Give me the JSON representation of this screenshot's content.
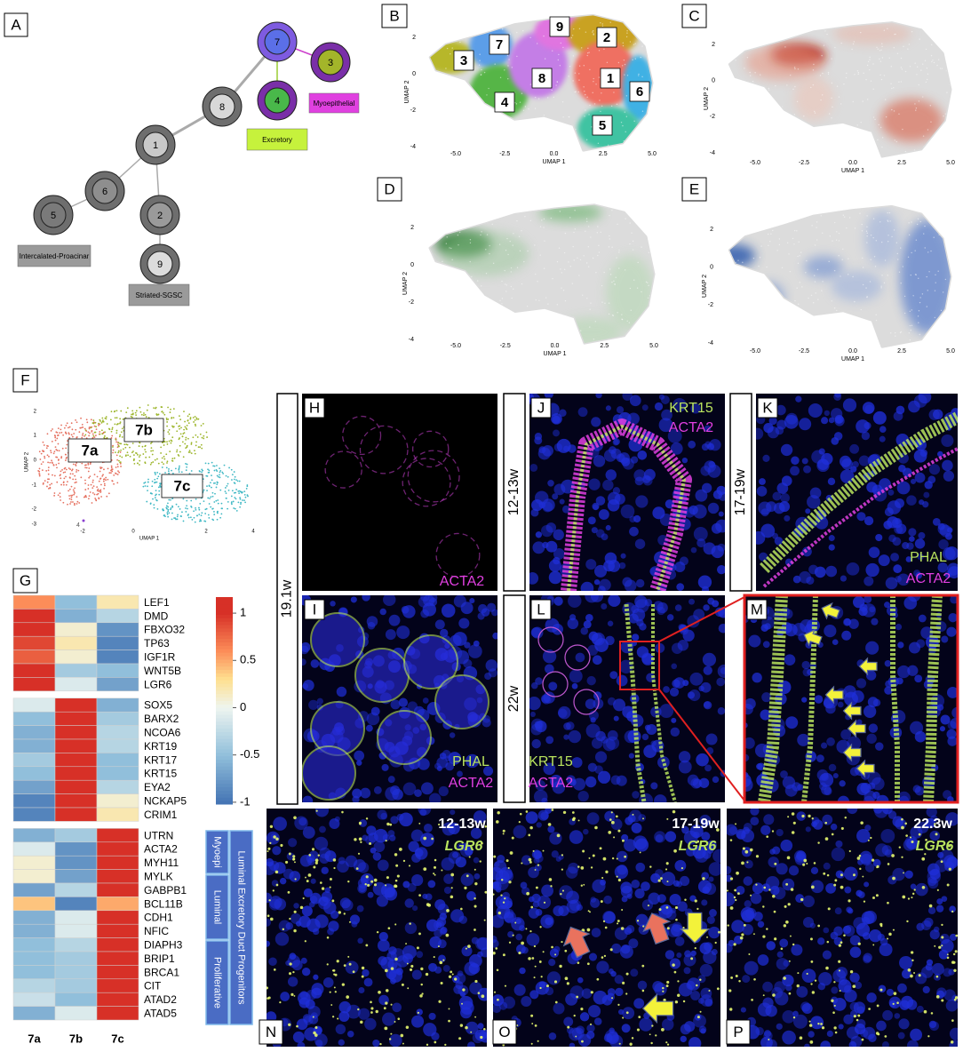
{
  "panel_labels": [
    "A",
    "B",
    "C",
    "D",
    "E",
    "F",
    "G"
  ],
  "lineage_tree": {
    "nodes": [
      "7",
      "3",
      "4",
      "8",
      "1",
      "6",
      "5",
      "2",
      "9"
    ],
    "fates": [
      "Myoepithelial",
      "Excretory",
      "Intercalated-Proacinar",
      "Striated-SGSC"
    ]
  },
  "umap": {
    "x_label": "UMAP 1",
    "y_label": "UMAP 2",
    "x_ticks": [
      "-5.0",
      "-2.5",
      "0.0",
      "2.5",
      "5.0"
    ],
    "y_ticks": [
      "2",
      "0",
      "-2",
      "-4"
    ],
    "clusters": [
      "1",
      "2",
      "3",
      "4",
      "5",
      "6",
      "7",
      "8",
      "9"
    ]
  },
  "subcluster_umap": {
    "x_label": "UMAP 1",
    "y_label": "UMAP 2",
    "x_ticks": [
      "-2",
      "0",
      "2",
      "4"
    ],
    "y_ticks": [
      "2",
      "1",
      "0",
      "-1",
      "-2",
      "-3"
    ],
    "clusters": [
      "7a",
      "7b",
      "7c"
    ],
    "outlier_cluster": "4"
  },
  "heatmap": {
    "columns": [
      "7a",
      "7b",
      "7c"
    ],
    "groups": [
      {
        "genes": [
          "LEF1",
          "DMD",
          "FBXO32",
          "TP63",
          "IGF1R",
          "WNT5B",
          "LGR6"
        ],
        "values": [
          [
            0.6,
            -0.5,
            0.2
          ],
          [
            1.0,
            -0.6,
            -0.3
          ],
          [
            1.0,
            0.1,
            -0.8
          ],
          [
            0.9,
            0.2,
            -0.9
          ],
          [
            0.8,
            0.1,
            -0.9
          ],
          [
            1.0,
            -0.4,
            -0.5
          ],
          [
            1.0,
            -0.1,
            -0.7
          ]
        ]
      },
      {
        "genes": [
          "SOX5",
          "BARX2",
          "NCOA6",
          "KRT19",
          "KRT17",
          "KRT15",
          "EYA2",
          "NCKAP5",
          "CRIM1"
        ],
        "values": [
          [
            -0.1,
            1.0,
            -0.6
          ],
          [
            -0.5,
            1.0,
            -0.4
          ],
          [
            -0.6,
            1.0,
            -0.3
          ],
          [
            -0.6,
            1.0,
            -0.3
          ],
          [
            -0.4,
            1.0,
            -0.5
          ],
          [
            -0.5,
            1.0,
            -0.5
          ],
          [
            -0.7,
            1.0,
            -0.3
          ],
          [
            -0.9,
            1.0,
            0.1
          ],
          [
            -0.9,
            1.0,
            0.2
          ]
        ]
      },
      {
        "genes": [
          "UTRN",
          "ACTA2",
          "MYH11",
          "MYLK",
          "GABPB1",
          "BCL11B",
          "CDH1",
          "NFIC",
          "DIAPH3",
          "BRIP1",
          "BRCA1",
          "CIT",
          "ATAD2",
          "ATAD5"
        ],
        "values": [
          [
            -0.6,
            -0.4,
            1.0
          ],
          [
            -0.1,
            -0.8,
            1.0
          ],
          [
            0.1,
            -0.8,
            1.0
          ],
          [
            0.1,
            -0.7,
            1.0
          ],
          [
            -0.7,
            -0.3,
            1.0
          ],
          [
            0.4,
            -0.9,
            0.5
          ],
          [
            -0.6,
            -0.1,
            1.0
          ],
          [
            -0.6,
            -0.1,
            1.0
          ],
          [
            -0.5,
            -0.3,
            1.0
          ],
          [
            -0.5,
            -0.4,
            1.0
          ],
          [
            -0.5,
            -0.4,
            1.0
          ],
          [
            -0.3,
            -0.4,
            1.0
          ],
          [
            -0.2,
            -0.5,
            1.0
          ],
          [
            -0.6,
            -0.1,
            1.0
          ]
        ]
      }
    ],
    "colorbar": {
      "lim": [
        -1.02,
        1.17
      ],
      "ticks": [
        1,
        0.5,
        0,
        -0.5,
        -1
      ]
    },
    "annotations": [
      "Myoepi",
      "Luminal",
      "Proliferative",
      "Luminal Excretory Duct Progenitors"
    ]
  },
  "micrographs": {
    "row_stages": [
      "19.1w",
      "12-13w",
      "17-19w",
      "22w"
    ],
    "panels": [
      {
        "label": "H",
        "stains": [
          "ACTA2"
        ]
      },
      {
        "label": "J",
        "stains": [
          "KRT15",
          "ACTA2"
        ]
      },
      {
        "label": "K",
        "stains": [
          "PHAL",
          "ACTA2"
        ]
      },
      {
        "label": "I",
        "stains": [
          "PHAL",
          "ACTA2"
        ]
      },
      {
        "label": "L",
        "stains": [
          "KRT15",
          "ACTA2"
        ]
      },
      {
        "label": "M",
        "stains": []
      }
    ],
    "lgr6_row": [
      {
        "label": "N",
        "stage": "12-13w",
        "stain": "LGR6"
      },
      {
        "label": "O",
        "stage": "17-19w",
        "stain": "LGR6"
      },
      {
        "label": "P",
        "stage": "22.3w",
        "stain": "LGR6"
      }
    ]
  }
}
